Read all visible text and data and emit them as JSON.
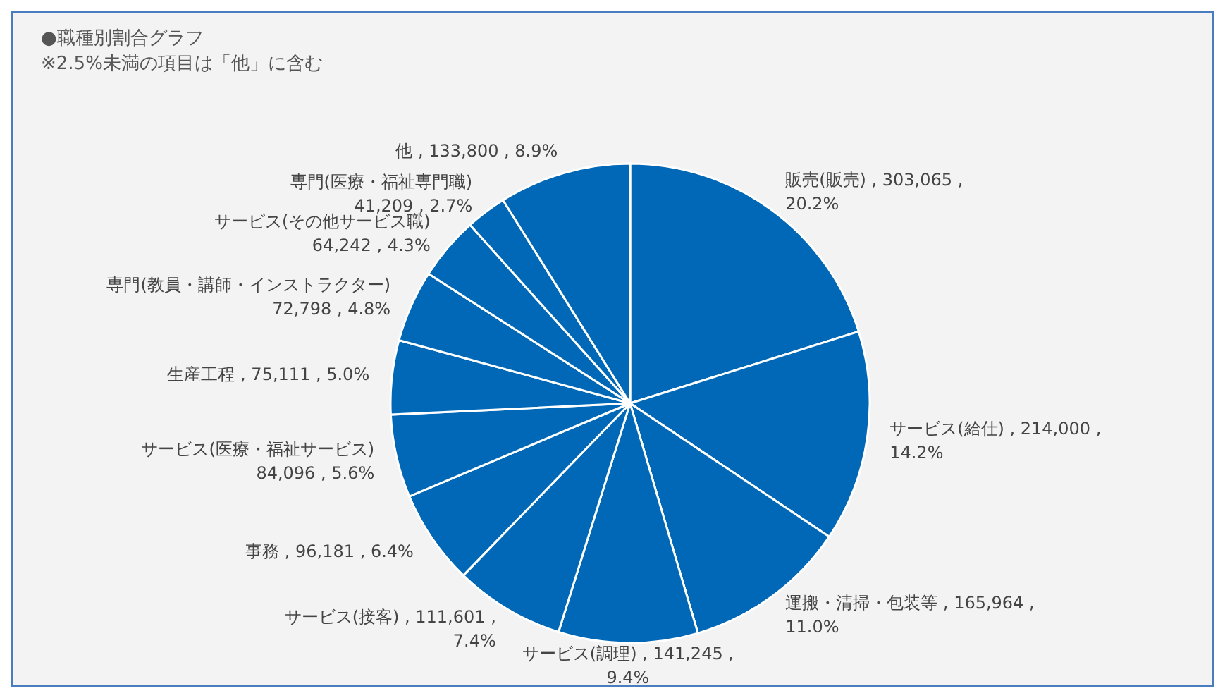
{
  "chart_data": {
    "type": "pie",
    "title": "●職種別割合グラフ",
    "subtitle": "※2.5%未満の項目は「他」に含む",
    "categories": [
      "販売(販売)",
      "サービス(給仕)",
      "運搬・清掃・包装等",
      "サービス(調理)",
      "サービス(接客)",
      "事務",
      "サービス(医療・福祉サービス)",
      "生産工程",
      "専門(教員・講師・インストラクター)",
      "サービス(その他サービス職)",
      "専門(医療・福祉専門職)",
      "他"
    ],
    "values": [
      303065,
      214000,
      165964,
      141245,
      111601,
      96181,
      84096,
      75111,
      72798,
      64242,
      41209,
      133800
    ],
    "value_labels": [
      "303,065 , 20.2%",
      "214,000 , 14.2%",
      "165,964 , 11.0%",
      "141,245 , 9.4%",
      "111,601 , 7.4%",
      "96,181 , 6.4%",
      "84,096 , 5.6%",
      "75,111 , 5.0%",
      "72,798 , 4.8%",
      "64,242 , 4.3%",
      "41,209 , 2.7%",
      "133,800 , 8.9%"
    ],
    "colors": [
      "#0068b7",
      "#0068b7",
      "#0068b7",
      "#0068b7",
      "#0068b7",
      "#0068b7",
      "#0068b7",
      "#0068b7",
      "#0068b7",
      "#0068b7",
      "#0068b7",
      "#0068b7"
    ],
    "legend": false
  }
}
